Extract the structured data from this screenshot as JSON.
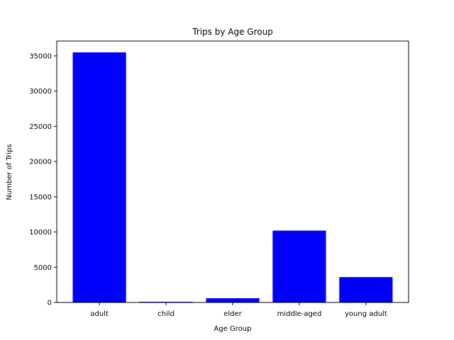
{
  "chart_data": {
    "type": "bar",
    "title": "Trips by Age Group",
    "xlabel": "Age Group",
    "ylabel": "Number of Trips",
    "categories": [
      "adult",
      "child",
      "elder",
      "middle-aged",
      "young adult"
    ],
    "values": [
      35500,
      100,
      600,
      10200,
      3600
    ],
    "ylim": [
      0,
      37100
    ],
    "yticks": [
      0,
      5000,
      10000,
      15000,
      20000,
      25000,
      30000,
      35000
    ],
    "bar_color": "#0000ff",
    "grid": false,
    "legend": "none"
  }
}
